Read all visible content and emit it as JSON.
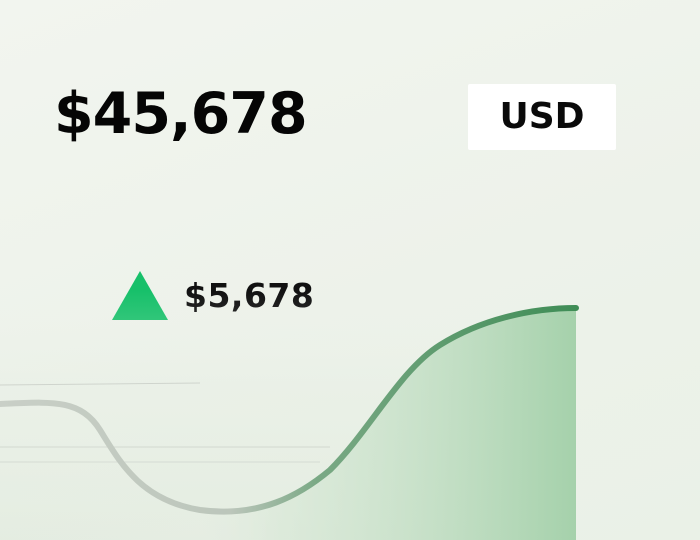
{
  "balance": {
    "total": "$45,678",
    "currency": "USD"
  },
  "change": {
    "direction": "up",
    "amount": "$5,678",
    "icon": "triangle-up-icon",
    "color": "#17c06a"
  },
  "chart": {
    "line_color": "#46935c",
    "fill_color": "#a7d3ad",
    "faded_line_color": "#cfd5cd"
  }
}
